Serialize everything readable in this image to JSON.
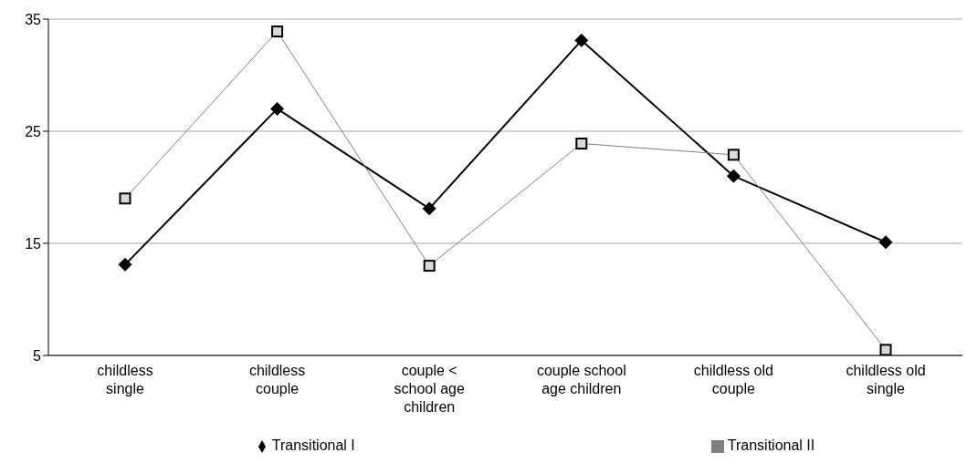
{
  "chart_data": {
    "type": "line",
    "categories": [
      "childless single",
      "childless couple",
      "couple < school age children",
      "couple school age children",
      "childless old couple",
      "childless old single"
    ],
    "series": [
      {
        "name": "Transitional I",
        "color": "#000000",
        "marker": "diamond",
        "values": [
          13.1,
          27.0,
          18.1,
          33.1,
          21.0,
          15.1
        ]
      },
      {
        "name": "Transitional II",
        "color": "#808080",
        "marker": "square",
        "values": [
          19.0,
          33.9,
          13.0,
          23.9,
          22.9,
          5.5
        ]
      }
    ],
    "ylim": [
      5,
      35
    ],
    "yticks": [
      5,
      15,
      25,
      35
    ],
    "grid": "y",
    "legend": "bottom",
    "line_style": "solid"
  }
}
